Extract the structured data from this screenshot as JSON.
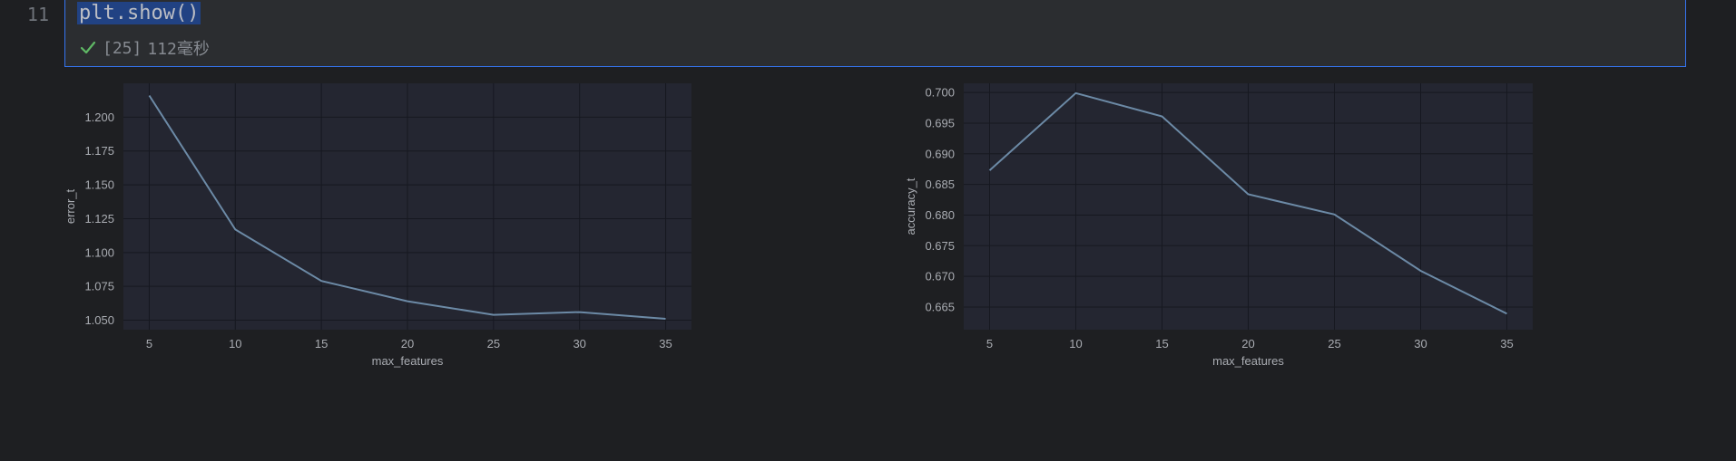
{
  "editor": {
    "line_number": "11",
    "code": "plt.show()",
    "exec_count": "[25]",
    "exec_time": "112毫秒"
  },
  "colors": {
    "line": "#6c8aa6",
    "plot_bg": "#242631",
    "grid": "#161820",
    "accent": "#3574f0",
    "success": "#5fb865"
  },
  "chart_data": [
    {
      "type": "line",
      "x": [
        5,
        10,
        15,
        20,
        25,
        30,
        35
      ],
      "values": [
        1.216,
        1.117,
        1.079,
        1.064,
        1.054,
        1.056,
        1.051
      ],
      "xlabel": "max_features",
      "ylabel": "error_t",
      "xlim": [
        3.5,
        36.5
      ],
      "ylim": [
        1.043,
        1.225
      ],
      "xticks": [
        5,
        10,
        15,
        20,
        25,
        30,
        35
      ],
      "yticks": [
        "1.050",
        "1.075",
        "1.100",
        "1.125",
        "1.150",
        "1.175",
        "1.200"
      ],
      "grid": true
    },
    {
      "type": "line",
      "x": [
        5,
        10,
        15,
        20,
        25,
        30,
        35
      ],
      "values": [
        0.6873,
        0.6999,
        0.6961,
        0.6834,
        0.6801,
        0.6709,
        0.6639
      ],
      "xlabel": "max_features",
      "ylabel": "accuracy_t",
      "xlim": [
        3.5,
        36.5
      ],
      "ylim": [
        0.6613,
        0.7015
      ],
      "xticks": [
        5,
        10,
        15,
        20,
        25,
        30,
        35
      ],
      "yticks": [
        "0.665",
        "0.670",
        "0.675",
        "0.680",
        "0.685",
        "0.690",
        "0.695",
        "0.700"
      ],
      "grid": true
    }
  ]
}
